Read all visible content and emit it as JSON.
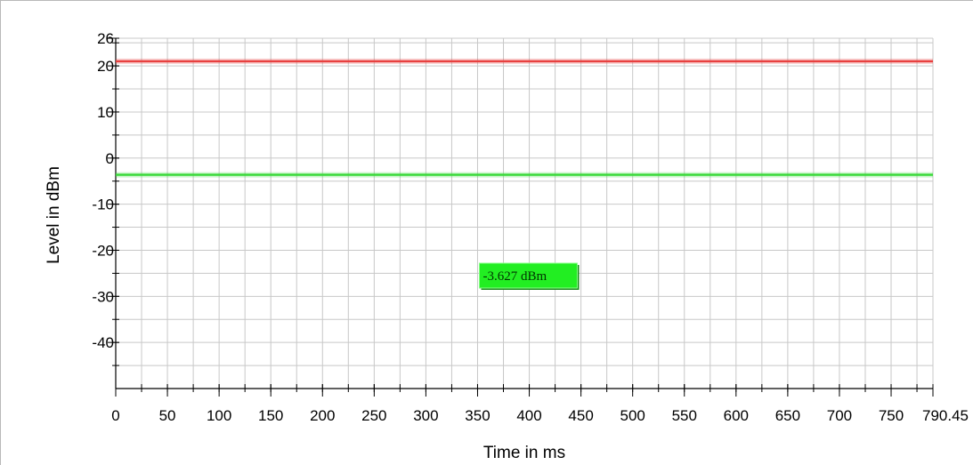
{
  "chart_data": {
    "type": "line",
    "xlabel": "Time in ms",
    "ylabel": "Level in dBm",
    "xlim": [
      0,
      790.45
    ],
    "ylim": [
      -50,
      26
    ],
    "x_ticks": [
      0,
      50,
      100,
      150,
      200,
      250,
      300,
      350,
      400,
      450,
      500,
      550,
      600,
      650,
      700,
      750,
      790.45
    ],
    "x_tick_labels": [
      "0",
      "50",
      "100",
      "150",
      "200",
      "250",
      "300",
      "350",
      "400",
      "450",
      "500",
      "550",
      "600",
      "650",
      "700",
      "750",
      "790.45"
    ],
    "y_ticks": [
      26,
      20,
      10,
      0,
      -10,
      -20,
      -30,
      -40
    ],
    "y_tick_labels": [
      "26",
      "20",
      "10",
      "0",
      "-10",
      "-20",
      "-30",
      "-40"
    ],
    "grid": true,
    "series": [
      {
        "color": "#e8403f",
        "x": [
          0,
          790.45
        ],
        "values": [
          21,
          21
        ]
      },
      {
        "color": "#38d938",
        "x": [
          0,
          790.45
        ],
        "values": [
          -3.627,
          -3.627
        ]
      }
    ],
    "annotations": [
      {
        "text": "-3.627 dBm",
        "x": 350,
        "y": -25.5,
        "background": "#22ee22"
      }
    ]
  }
}
